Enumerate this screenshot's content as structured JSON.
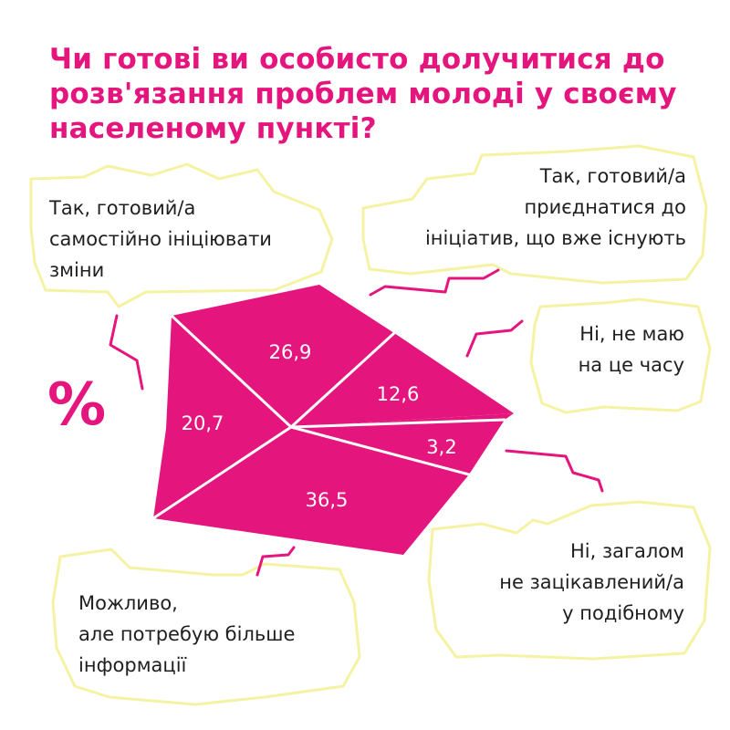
{
  "title": "Чи готові ви особисто долучитися до розв'язання проблем молоді у своєму населеному пункті?",
  "unit_sign": "%",
  "colors": {
    "accent": "#e5157e",
    "bubble_outline": "#f6f2a3",
    "divider": "#ffffff",
    "text": "#1f1f1f"
  },
  "chart_data": {
    "type": "pie",
    "unit": "%",
    "slices": [
      {
        "label": "Так, готовий/а самостійно ініціювати зміни",
        "value": 26.9,
        "value_text": "26,9"
      },
      {
        "label": "Так, готовий/а приєднатися до ініціатив, що вже існують",
        "value": 12.6,
        "value_text": "12,6"
      },
      {
        "label": "Ні, не маю на це часу",
        "value": 3.2,
        "value_text": "3,2"
      },
      {
        "label": "Ні, загалом не зацікавлений/а у подібному",
        "value": 36.5,
        "value_text": "36,5"
      },
      {
        "label": "Можливо, але потребую більше інформації",
        "value": 20.7,
        "value_text": "20,7"
      }
    ]
  },
  "bubbles": [
    {
      "id": "self",
      "lines": [
        "Так, готовий/а",
        "самостійно ініціювати",
        "зміни"
      ]
    },
    {
      "id": "join",
      "lines": [
        "Так, готовий/а",
        "приєднатися до",
        "ініціатив, що вже існують"
      ]
    },
    {
      "id": "notime",
      "lines": [
        "Ні, не маю",
        "на це часу"
      ]
    },
    {
      "id": "notint",
      "lines": [
        "Ні, загалом",
        "не зацікавлений/а",
        "у подібному"
      ]
    },
    {
      "id": "maybe",
      "lines": [
        "Можливо,",
        "але потребую більше",
        "інформації"
      ]
    }
  ]
}
